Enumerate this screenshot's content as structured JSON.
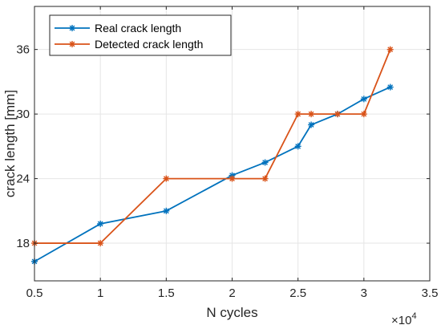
{
  "chart_data": {
    "type": "line",
    "xlabel": "N cycles",
    "ylabel": "crack length [mm]",
    "x_exponent_label": "×10",
    "x_exponent_power": "4",
    "xlim": [
      0.5,
      3.5
    ],
    "ylim": [
      14.5,
      40
    ],
    "x_ticks": [
      0.5,
      1,
      1.5,
      2,
      2.5,
      3,
      3.5
    ],
    "x_tick_labels": [
      "0.5",
      "1",
      "1.5",
      "2",
      "2.5",
      "3",
      "3.5"
    ],
    "y_ticks": [
      18,
      24,
      30,
      36
    ],
    "y_tick_labels": [
      "18",
      "24",
      "30",
      "36"
    ],
    "grid": true,
    "legend_position": "top-left",
    "series": [
      {
        "name": "Real crack length",
        "color": "#0072BD",
        "marker": "asterisk",
        "x": [
          0.5,
          1.0,
          1.5,
          2.0,
          2.25,
          2.5,
          2.6,
          2.8,
          3.0,
          3.2
        ],
        "y": [
          16.3,
          19.8,
          21.0,
          24.3,
          25.5,
          27.0,
          29.0,
          30.0,
          31.4,
          32.5
        ]
      },
      {
        "name": "Detected crack length",
        "color": "#D95319",
        "marker": "asterisk",
        "x": [
          0.5,
          1.0,
          1.5,
          2.0,
          2.25,
          2.5,
          2.6,
          2.8,
          3.0,
          3.2
        ],
        "y": [
          18.0,
          18.0,
          24.0,
          24.0,
          24.0,
          30.0,
          30.0,
          30.0,
          30.0,
          36.0
        ]
      }
    ]
  }
}
